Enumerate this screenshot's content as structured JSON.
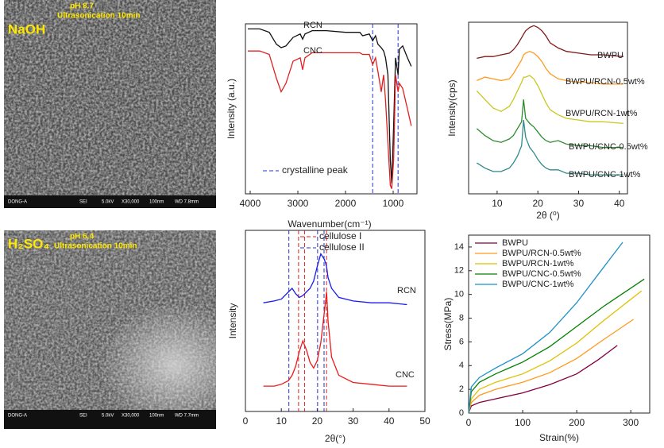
{
  "images": [
    {
      "label": "NaOH",
      "ph": "pH 8.7",
      "treatment": "Ultrasonication 10min",
      "bar": [
        "DONG-A",
        "SEI",
        "5.0kV",
        "X30,000",
        "100nm",
        "WD 7.8mm"
      ]
    },
    {
      "label": "H₂SO₄",
      "ph": "pH 6.4",
      "treatment": "Ultrasonication 10min",
      "bar": [
        "DONG-A",
        "SEI",
        "5.0kV",
        "X30,000",
        "100nm",
        "WD 7.7mm"
      ]
    }
  ],
  "chart_data": [
    {
      "type": "line",
      "xlabel": "Wavenumber(cm⁻¹)",
      "ylabel": "Intensity (a.u.)",
      "legend": "inline",
      "xlim": [
        4100,
        500
      ],
      "ylim": [
        0,
        100
      ],
      "xticks": [
        4000,
        3000,
        2000,
        1000
      ],
      "x": [
        4050,
        3800,
        3600,
        3450,
        3350,
        3250,
        3100,
        2950,
        2900,
        2850,
        2700,
        2400,
        2000,
        1700,
        1640,
        1500,
        1430,
        1370,
        1320,
        1250,
        1200,
        1160,
        1110,
        1060,
        1030,
        990,
        950,
        897,
        870,
        800,
        700,
        620
      ],
      "series": [
        {
          "name": "RCN",
          "color": "#111111",
          "values": [
            97,
            97,
            95,
            88,
            86,
            87,
            92,
            94,
            91,
            94,
            96,
            96,
            95,
            95,
            93,
            94,
            90,
            93,
            88,
            86,
            84,
            80,
            70,
            20,
            6,
            40,
            80,
            70,
            85,
            87,
            80,
            75
          ]
        },
        {
          "name": "CNC",
          "color": "#e02020",
          "values": [
            84,
            84,
            82,
            68,
            60,
            65,
            78,
            80,
            73,
            80,
            83,
            83,
            83,
            83,
            82,
            82,
            76,
            80,
            72,
            60,
            70,
            55,
            30,
            5,
            3,
            20,
            70,
            60,
            65,
            62,
            50,
            40
          ]
        }
      ],
      "vlines": [
        {
          "name": "crystalline peak",
          "color": "#2233cc",
          "values": [
            1430,
            897
          ]
        }
      ]
    },
    {
      "type": "line",
      "xlabel": "2θ (⁰)",
      "ylabel": "Intensity(cps)",
      "legend": "inline",
      "xlim": [
        3,
        42
      ],
      "ylim": [
        0,
        100
      ],
      "xticks": [
        10,
        20,
        30,
        40
      ],
      "x": [
        5,
        7,
        9,
        11,
        13,
        14,
        15,
        16,
        16.5,
        17,
        18,
        19,
        20,
        21,
        22,
        23,
        25,
        27,
        30,
        33,
        36,
        41
      ],
      "series": [
        {
          "name": "BWPU",
          "color": "#7f1a1a",
          "values": [
            79,
            80,
            80,
            81,
            82,
            84,
            87,
            91,
            93,
            95,
            97,
            98,
            97,
            95,
            92,
            88,
            85,
            83,
            82,
            81,
            81,
            80
          ]
        },
        {
          "name": "BWPU/RCN-0.5wt%",
          "color": "#ff9a1e",
          "values": [
            66,
            68,
            67,
            66,
            67,
            70,
            74,
            78,
            81,
            82,
            83,
            82,
            80,
            77,
            73,
            70,
            67,
            66,
            65,
            65,
            64,
            64
          ]
        },
        {
          "name": "BWPU/RCN-1wt%",
          "color": "#c8c81e",
          "values": [
            60,
            55,
            50,
            48,
            51,
            55,
            60,
            65,
            68,
            68,
            69,
            67,
            63,
            58,
            53,
            49,
            46,
            44,
            43,
            42,
            42,
            41
          ]
        },
        {
          "name": "BWPU/CNC-0.5wt%",
          "color": "#2e8b2e",
          "values": [
            38,
            34,
            31,
            30,
            32,
            34,
            38,
            42,
            55,
            44,
            41,
            39,
            36,
            33,
            31,
            30,
            31,
            29,
            28,
            28,
            27,
            27
          ]
        },
        {
          "name": "BWPU/CNC-1wt%",
          "color": "#2e8b8b",
          "values": [
            18,
            15,
            13,
            13,
            15,
            18,
            22,
            28,
            43,
            33,
            27,
            24,
            20,
            17,
            15,
            14,
            14,
            12,
            12,
            11,
            11,
            11
          ]
        }
      ]
    },
    {
      "type": "line",
      "xlabel": "2θ(°)",
      "ylabel": "Intensity",
      "legend": "inline",
      "xlim": [
        0,
        50
      ],
      "ylim": [
        0,
        100
      ],
      "xticks": [
        0,
        10,
        20,
        30,
        40,
        50
      ],
      "x": [
        5,
        8,
        10,
        12,
        13,
        14,
        15,
        16,
        17,
        18,
        19,
        20,
        21,
        22,
        22.6,
        23,
        24,
        26,
        30,
        35,
        40,
        45
      ],
      "series": [
        {
          "name": "RCN",
          "color": "#1a1aee",
          "values": [
            60,
            61,
            62,
            66,
            68,
            65,
            63,
            64,
            66,
            68,
            72,
            80,
            87,
            84,
            80,
            74,
            68,
            63,
            61,
            60,
            60,
            59
          ]
        },
        {
          "name": "CNC",
          "color": "#ee1a1a",
          "values": [
            14,
            14,
            15,
            17,
            20,
            25,
            33,
            39,
            34,
            27,
            24,
            28,
            38,
            55,
            66,
            50,
            30,
            20,
            16,
            15,
            14,
            14
          ]
        }
      ],
      "vlines": [
        {
          "name": "cellulose I",
          "color": "#dd2222",
          "values": [
            14.8,
            16.5,
            22.6
          ]
        },
        {
          "name": "cellulose II",
          "color": "#2233cc",
          "values": [
            12.1,
            20.1,
            21.9
          ]
        }
      ]
    },
    {
      "type": "line",
      "xlabel": "Strain(%)",
      "ylabel": "Stress(MPa)",
      "legend": "upper left",
      "xlim": [
        0,
        335
      ],
      "ylim": [
        0,
        15
      ],
      "xticks": [
        0,
        100,
        200,
        300
      ],
      "yticks": [
        0,
        2,
        4,
        6,
        8,
        10,
        12,
        14
      ],
      "series": [
        {
          "name": "BWPU",
          "color": "#800040",
          "x": [
            0,
            5,
            20,
            50,
            100,
            150,
            200,
            240,
            275
          ],
          "values": [
            0,
            0.6,
            0.9,
            1.2,
            1.7,
            2.4,
            3.3,
            4.5,
            5.7
          ]
        },
        {
          "name": "BWPU/RCN-0.5wt%",
          "color": "#ff9a1e",
          "x": [
            0,
            5,
            20,
            50,
            100,
            150,
            200,
            250,
            305
          ],
          "values": [
            0,
            0.9,
            1.5,
            2.0,
            2.6,
            3.4,
            4.6,
            6.2,
            7.9
          ]
        },
        {
          "name": "BWPU/RCN-1wt%",
          "color": "#e0c000",
          "x": [
            0,
            5,
            20,
            50,
            100,
            150,
            200,
            250,
            320
          ],
          "values": [
            0,
            1.2,
            2.0,
            2.6,
            3.3,
            4.4,
            5.9,
            7.8,
            10.3
          ]
        },
        {
          "name": "BWPU/CNC-0.5wt%",
          "color": "#008000",
          "x": [
            0,
            5,
            20,
            50,
            100,
            150,
            200,
            250,
            325
          ],
          "values": [
            0,
            1.8,
            2.6,
            3.3,
            4.3,
            5.6,
            7.3,
            9.0,
            11.3
          ]
        },
        {
          "name": "BWPU/CNC-1wt%",
          "color": "#1e90c8",
          "x": [
            0,
            5,
            20,
            50,
            100,
            150,
            200,
            250,
            285
          ],
          "values": [
            0,
            2.2,
            3.0,
            3.8,
            5.0,
            6.8,
            9.3,
            12.3,
            14.4
          ]
        }
      ]
    }
  ]
}
